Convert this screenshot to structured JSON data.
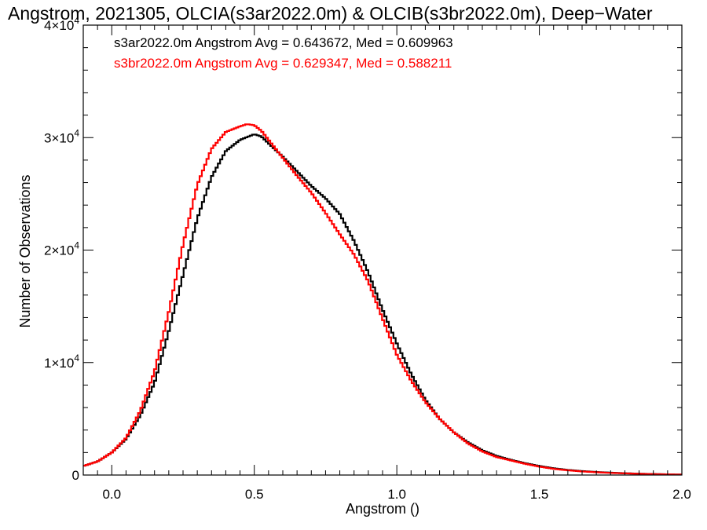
{
  "chart_data": {
    "type": "line",
    "title": "Angstrom, 2021305, OLCIA(s3ar2022.0m) & OLCIB(s3br2022.0m), Deep−Water",
    "xlabel": "Angstrom ()",
    "ylabel": "Number of Observations",
    "xlim": [
      -0.1,
      2.0
    ],
    "ylim": [
      0,
      40000
    ],
    "x_ticks": [
      {
        "value": 0.0,
        "label": "0.0"
      },
      {
        "value": 0.5,
        "label": "0.5"
      },
      {
        "value": 1.0,
        "label": "1.0"
      },
      {
        "value": 1.5,
        "label": "1.5"
      },
      {
        "value": 2.0,
        "label": "2.0"
      }
    ],
    "y_ticks": [
      {
        "value": 0,
        "mantissa": "0",
        "exp": ""
      },
      {
        "value": 10000,
        "mantissa": "1×10",
        "exp": "4"
      },
      {
        "value": 20000,
        "mantissa": "2×10",
        "exp": "4"
      },
      {
        "value": 30000,
        "mantissa": "3×10",
        "exp": "4"
      },
      {
        "value": 40000,
        "mantissa": "4×10",
        "exp": "4"
      }
    ],
    "grid": false,
    "legend_position": "top-left",
    "series": [
      {
        "legend": "s3ar2022.0m Angstrom Avg = 0.643672, Med = 0.609963",
        "color": "#000000",
        "x": [
          -0.1,
          -0.05,
          0.0,
          0.05,
          0.1,
          0.15,
          0.2,
          0.25,
          0.3,
          0.35,
          0.4,
          0.45,
          0.5,
          0.525,
          0.55,
          0.6,
          0.65,
          0.7,
          0.75,
          0.8,
          0.85,
          0.9,
          0.95,
          1.0,
          1.05,
          1.1,
          1.15,
          1.2,
          1.25,
          1.3,
          1.35,
          1.4,
          1.45,
          1.5,
          1.55,
          1.6,
          1.65,
          1.7,
          1.75,
          1.8,
          1.85,
          1.9,
          1.95,
          2.0
        ],
        "y": [
          800,
          1200,
          2000,
          3200,
          5300,
          8200,
          12800,
          17800,
          22800,
          26500,
          28800,
          29800,
          30300,
          30100,
          29500,
          28300,
          27000,
          25700,
          24600,
          23200,
          20800,
          18000,
          14700,
          11700,
          9000,
          6700,
          5000,
          3800,
          2900,
          2200,
          1700,
          1350,
          1050,
          800,
          600,
          450,
          350,
          270,
          210,
          160,
          120,
          90,
          60,
          40
        ]
      },
      {
        "legend": "s3br2022.0m Angstrom Avg = 0.629347, Med = 0.588211",
        "color": "#ff0000",
        "x": [
          -0.1,
          -0.05,
          0.0,
          0.05,
          0.1,
          0.15,
          0.2,
          0.25,
          0.3,
          0.35,
          0.4,
          0.45,
          0.475,
          0.5,
          0.525,
          0.55,
          0.6,
          0.65,
          0.7,
          0.75,
          0.8,
          0.85,
          0.9,
          0.95,
          1.0,
          1.05,
          1.1,
          1.15,
          1.2,
          1.25,
          1.3,
          1.35,
          1.4,
          1.45,
          1.5,
          1.55,
          1.6,
          1.65,
          1.7,
          1.75,
          1.8,
          1.85,
          1.9,
          1.95,
          2.0
        ],
        "y": [
          800,
          1200,
          2000,
          3300,
          5700,
          9200,
          14500,
          20500,
          25800,
          29000,
          30500,
          31000,
          31200,
          31100,
          30600,
          29800,
          28200,
          26600,
          25100,
          23300,
          21400,
          19600,
          17200,
          13900,
          10700,
          8400,
          6500,
          5000,
          3800,
          2800,
          2100,
          1600,
          1300,
          1000,
          750,
          550,
          420,
          320,
          250,
          190,
          150,
          110,
          80,
          60,
          40
        ]
      }
    ]
  }
}
